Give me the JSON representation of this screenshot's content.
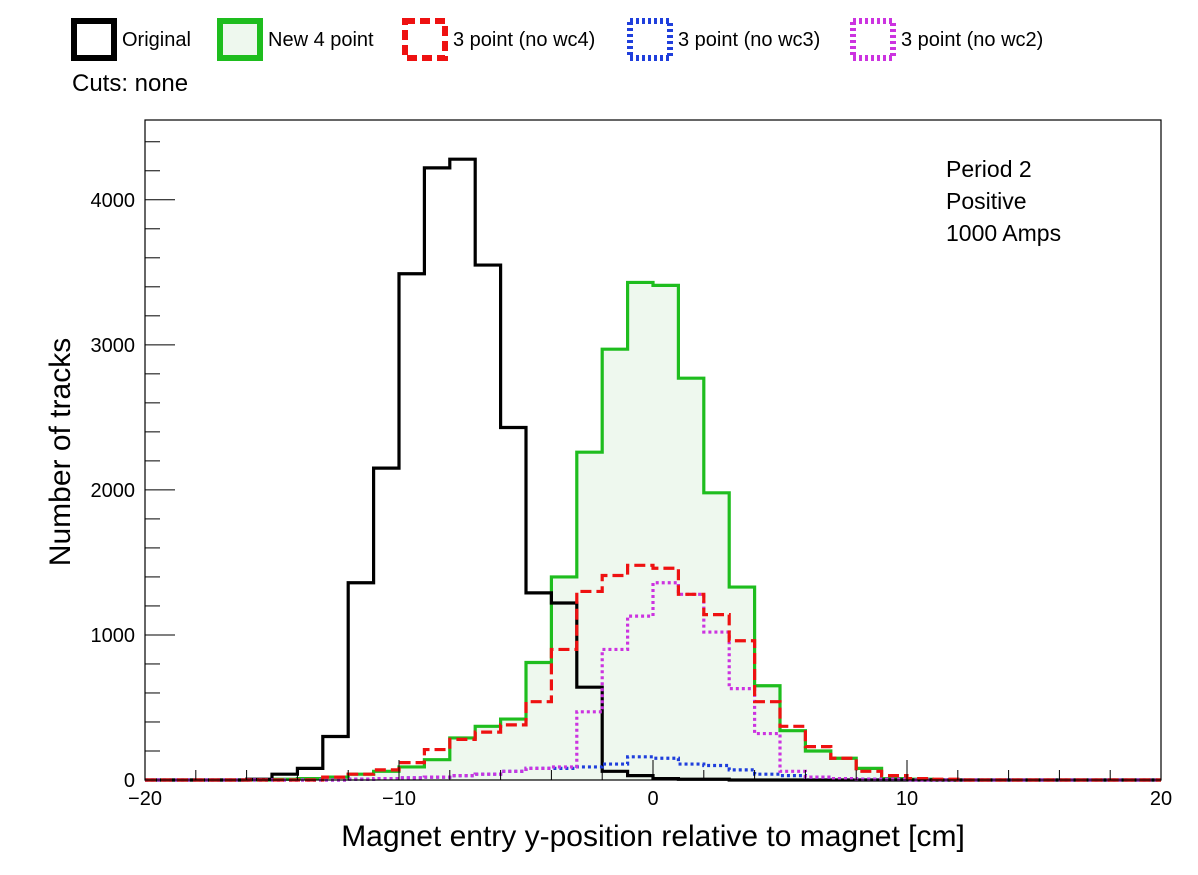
{
  "cuts_label": "Cuts: none",
  "colors": {
    "original": "#000000",
    "new4": "#1ebd1e",
    "new4_fill": "#eef8ee",
    "no_wc4": "#ee1111",
    "no_wc3": "#1f3fdc",
    "no_wc2": "#cc33e0"
  },
  "chart_data": {
    "type": "histogram",
    "title": "",
    "xlabel": "Magnet entry y-position relative to magnet [cm]",
    "ylabel": "Number of tracks",
    "xlim": [
      -20,
      20
    ],
    "ylim": [
      0,
      4550
    ],
    "x_ticks": [
      -20,
      -10,
      0,
      10,
      20
    ],
    "y_ticks": [
      0,
      1000,
      2000,
      3000,
      4000
    ],
    "bin_width": 1,
    "grid": false,
    "legend_position": "top, outside plot",
    "annotations": [
      "Period 2",
      "Positive",
      "1000 Amps"
    ],
    "series": [
      {
        "name": "Original",
        "key": "original",
        "style": "solid",
        "bin_edges": [
          -16,
          -15,
          -14,
          -13,
          -12,
          -11,
          -10,
          -9,
          -8,
          -7,
          -6,
          -5,
          -4,
          -3,
          -2,
          -1,
          0,
          1,
          2,
          3
        ],
        "values": [
          5,
          40,
          80,
          300,
          1360,
          2150,
          3490,
          4220,
          4280,
          3550,
          2430,
          1290,
          1220,
          640,
          60,
          30,
          10,
          5,
          5
        ]
      },
      {
        "name": "New 4 point",
        "key": "new4",
        "style": "solid",
        "filled": true,
        "bin_edges": [
          -15,
          -14,
          -13,
          -12,
          -11,
          -10,
          -9,
          -8,
          -7,
          -6,
          -5,
          -4,
          -3,
          -2,
          -1,
          0,
          1,
          2,
          3,
          4,
          5,
          6,
          7,
          8,
          9,
          10,
          11
        ],
        "values": [
          5,
          10,
          20,
          40,
          60,
          90,
          140,
          290,
          370,
          420,
          810,
          1400,
          2260,
          2970,
          3430,
          3410,
          2770,
          1980,
          1330,
          650,
          340,
          200,
          150,
          80,
          10,
          5
        ]
      },
      {
        "name": "3 point (no wc4)",
        "key": "no_wc4",
        "style": "dashed",
        "bin_edges": [
          -13,
          -12,
          -11,
          -10,
          -9,
          -8,
          -7,
          -6,
          -5,
          -4,
          -3,
          -2,
          -1,
          0,
          1,
          2,
          3,
          4,
          5,
          6,
          7,
          8,
          9,
          10,
          11,
          12
        ],
        "values": [
          20,
          40,
          70,
          120,
          210,
          280,
          330,
          380,
          540,
          900,
          1300,
          1410,
          1480,
          1460,
          1280,
          1140,
          960,
          540,
          370,
          230,
          150,
          60,
          30,
          10,
          5
        ]
      },
      {
        "name": "3 point (no wc3)",
        "key": "no_wc3",
        "style": "dotted",
        "bin_edges": [
          -12,
          -11,
          -10,
          -9,
          -8,
          -7,
          -6,
          -5,
          -4,
          -3,
          -2,
          -1,
          0,
          1,
          2,
          3,
          4,
          5,
          6,
          7,
          8,
          9,
          10
        ],
        "values": [
          5,
          10,
          15,
          20,
          30,
          40,
          60,
          80,
          80,
          90,
          110,
          160,
          150,
          110,
          100,
          70,
          40,
          30,
          20,
          10,
          5,
          5
        ]
      },
      {
        "name": "3 point (no wc2)",
        "key": "no_wc2",
        "style": "dotted",
        "bin_edges": [
          -12,
          -11,
          -10,
          -9,
          -8,
          -7,
          -6,
          -5,
          -4,
          -3,
          -2,
          -1,
          0,
          1,
          2,
          3,
          4,
          5,
          6,
          7,
          8,
          9,
          10
        ],
        "values": [
          5,
          10,
          15,
          20,
          30,
          40,
          60,
          80,
          90,
          470,
          900,
          1130,
          1360,
          1280,
          1020,
          630,
          320,
          60,
          20,
          10,
          5,
          5
        ]
      }
    ]
  }
}
